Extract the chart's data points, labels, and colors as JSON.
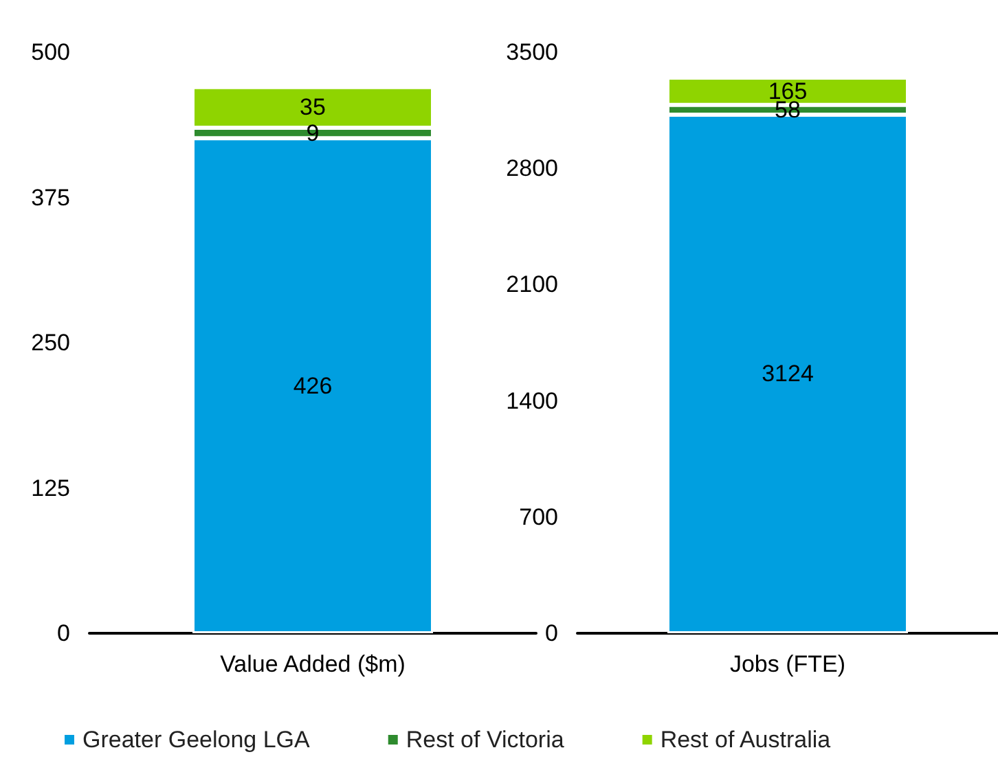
{
  "chart_data": [
    {
      "type": "bar",
      "stacked": true,
      "categories": [
        "Value Added ($m)"
      ],
      "ylim": [
        0,
        500
      ],
      "yticks": [
        0,
        125,
        250,
        375,
        500
      ],
      "data_labels": true,
      "legend": "bottom",
      "series": [
        {
          "name": "Greater Geelong LGA",
          "color": "#009fe0",
          "values": [
            426
          ]
        },
        {
          "name": "Rest of Victoria",
          "color": "#2e8b2e",
          "values": [
            9
          ]
        },
        {
          "name": "Rest of Australia",
          "color": "#8fd400",
          "values": [
            35
          ]
        }
      ]
    },
    {
      "type": "bar",
      "stacked": true,
      "categories": [
        "Jobs (FTE)"
      ],
      "ylim": [
        0,
        3500
      ],
      "yticks": [
        0,
        700,
        1400,
        2100,
        2800,
        3500
      ],
      "data_labels": true,
      "series": [
        {
          "color": "#009fe0",
          "values": [
            3124
          ]
        },
        {
          "color": "#2e8b2e",
          "values": [
            58
          ]
        },
        {
          "color": "#8fd400",
          "values": [
            165
          ]
        }
      ]
    }
  ]
}
